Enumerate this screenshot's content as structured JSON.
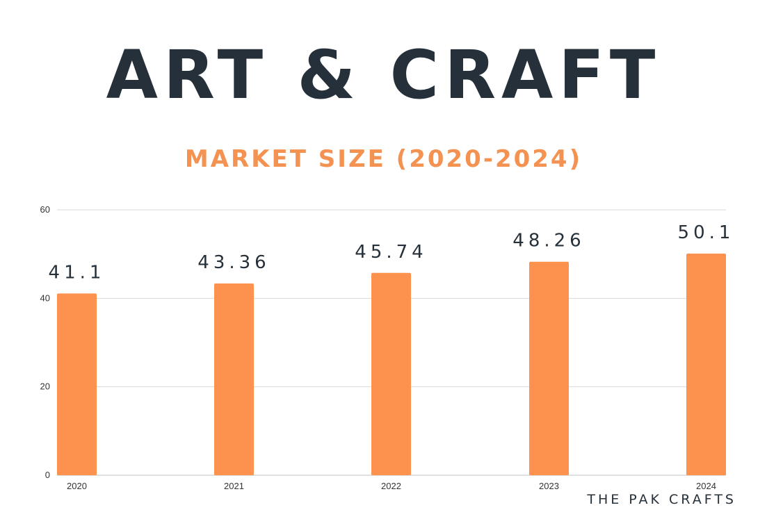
{
  "header": {
    "title": "ART & CRAFT",
    "subtitle": "MARKET SIZE (2020-2024)"
  },
  "footer": {
    "credit": "THE PAK CRAFTS"
  },
  "colors": {
    "bar": "#fd914e",
    "title": "#25303a",
    "subtitle": "#f39251",
    "grid": "#d9d9d9"
  },
  "chart_data": {
    "type": "bar",
    "title": "ART & CRAFT",
    "subtitle": "MARKET SIZE (2020-2024)",
    "categories": [
      "2020",
      "2021",
      "2022",
      "2023",
      "2024"
    ],
    "values": [
      41.1,
      43.36,
      45.74,
      48.26,
      50.1
    ],
    "value_labels": [
      "41.1",
      "43.36",
      "45.74",
      "48.26",
      "50.1"
    ],
    "xlabel": "",
    "ylabel": "",
    "ylim": [
      0,
      60
    ],
    "yticks": [
      0,
      20,
      40,
      60
    ],
    "grid": true,
    "legend": "none"
  }
}
